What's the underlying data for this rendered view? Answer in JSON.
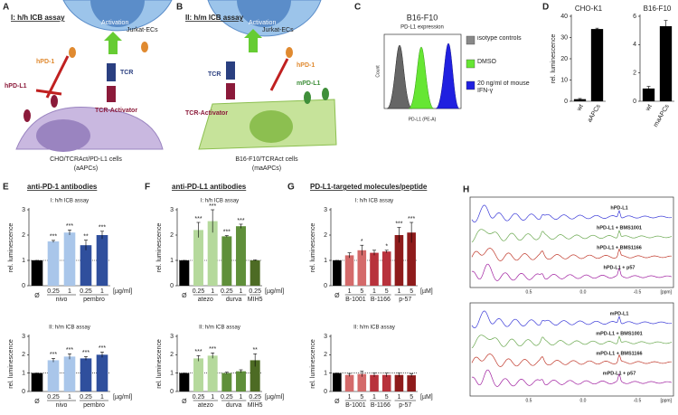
{
  "panel_labels": [
    "A",
    "B",
    "C",
    "D",
    "E",
    "F",
    "G",
    "H"
  ],
  "panel_a": {
    "title": "I: h/h ICB assay",
    "jurkat": "Jurkat-ECs",
    "activation": "Activation",
    "pd1": "hPD-1",
    "pdl1": "hPD-L1",
    "tcr": "TCR",
    "activator": "TCR-Activator",
    "cells": "CHO/TCRAct/PD-L1 cells",
    "cells_abbr": "(aAPCs)"
  },
  "panel_b": {
    "title": "II: h/m ICB assay",
    "jurkat": "Jurkat-ECs",
    "activation": "Activation",
    "pd1": "hPD-1",
    "tcr": "TCR",
    "pdl1": "mPD-L1",
    "activator": "TCR-Activator",
    "cells": "B16-F10/TCRAct cells",
    "cells_abbr": "(maAPCs)"
  },
  "panel_c": {
    "title": "B16-F10",
    "subtitle": "PD-L1 expression",
    "y_label": "Count",
    "x_label": "PD-L1 (PE-A)",
    "legend": [
      "isotype controls",
      "DMSO",
      "20 ng/ml of mouse IFN-γ"
    ],
    "legend_colors": [
      "#888888",
      "#66e633",
      "#2020e0"
    ]
  },
  "panel_titles": {
    "e": "anti-PD-1 antibodies",
    "f": "anti-PD-L1 antibodies",
    "g": "PD-L1-targeted molecules/peptide"
  },
  "chart_data": [
    {
      "type": "bar",
      "title": "CHO-K1",
      "y_label": "rel. luminescence",
      "categories": [
        "wt",
        "aAPCs"
      ],
      "values": [
        1,
        34
      ],
      "errors": [
        0.3,
        0.4
      ],
      "colors": [
        "#000000",
        "#000000"
      ],
      "ylim": [
        0,
        40
      ],
      "yticks": [
        0,
        10,
        20,
        30,
        40
      ]
    },
    {
      "type": "bar",
      "title": "B16-F10",
      "categories": [
        "wt",
        "maAPCs"
      ],
      "values": [
        0.9,
        5.3
      ],
      "errors": [
        0.15,
        0.4
      ],
      "colors": [
        "#000000",
        "#000000"
      ],
      "ylim": [
        0,
        6
      ],
      "yticks": [
        0,
        2,
        4,
        6
      ]
    },
    {
      "type": "bar",
      "title": "I: h/h ICB assay",
      "y_label": "rel. luminescence",
      "categories": [
        "Ø",
        "0.25",
        "1",
        "0.25",
        "1"
      ],
      "groups": [
        null,
        "nivo",
        null,
        "pembro",
        null
      ],
      "unit": "[µg/ml]",
      "values": [
        1,
        1.75,
        2.1,
        1.6,
        2.0
      ],
      "errors": [
        0,
        0.04,
        0.1,
        0.2,
        0.15
      ],
      "significance": [
        null,
        "***",
        "***",
        "**",
        "***"
      ],
      "colors": [
        "#000000",
        "#a9c6ea",
        "#a9c6ea",
        "#2f4f9d",
        "#2f4f9d"
      ],
      "ylim": [
        0,
        3
      ],
      "yticks": [
        0,
        1,
        2,
        3
      ],
      "reference_line": 1
    },
    {
      "type": "bar",
      "title": "II: h/m ICB assay",
      "y_label": "rel. luminescence",
      "categories": [
        "Ø",
        "0.25",
        "1",
        "0.25",
        "1"
      ],
      "groups": [
        null,
        "nivo",
        null,
        "pembro",
        null
      ],
      "unit": "[µg/ml]",
      "values": [
        1,
        1.7,
        1.9,
        1.8,
        2.0
      ],
      "errors": [
        0,
        0.1,
        0.15,
        0.1,
        0.15
      ],
      "significance": [
        null,
        "***",
        "***",
        "***",
        "***"
      ],
      "colors": [
        "#000000",
        "#a9c6ea",
        "#a9c6ea",
        "#2f4f9d",
        "#2f4f9d"
      ],
      "ylim": [
        0,
        3
      ],
      "yticks": [
        0,
        1,
        2,
        3
      ],
      "reference_line": 1
    },
    {
      "type": "bar",
      "title": "I: h/h ICB assay",
      "y_label": "rel. luminescence",
      "categories": [
        "Ø",
        "0.25",
        "1",
        "0.25",
        "1",
        "0.25"
      ],
      "groups": [
        null,
        "atezo",
        null,
        "durva",
        null,
        "MIH5"
      ],
      "unit": "[µg/ml]",
      "values": [
        1,
        2.2,
        2.55,
        1.95,
        2.35,
        1.0
      ],
      "errors": [
        0,
        0.3,
        0.45,
        0.03,
        0.08,
        0.02
      ],
      "significance": [
        null,
        "***",
        "***",
        "***",
        "***",
        null
      ],
      "colors": [
        "#000000",
        "#b5d99c",
        "#b5d99c",
        "#5f8f3a",
        "#5f8f3a",
        "#4d6b24"
      ],
      "ylim": [
        0,
        3
      ],
      "yticks": [
        0,
        1,
        2,
        3
      ],
      "reference_line": 1
    },
    {
      "type": "bar",
      "title": "II: h/m ICB assay",
      "y_label": "rel. luminescence",
      "categories": [
        "Ø",
        "0.25",
        "1",
        "0.25",
        "1",
        "0.25"
      ],
      "groups": [
        null,
        "atezo",
        null,
        "durva",
        null,
        "MIH5"
      ],
      "unit": "[µg/ml]",
      "values": [
        1,
        1.8,
        1.95,
        1.0,
        1.1,
        1.7
      ],
      "errors": [
        0,
        0.15,
        0.15,
        0.05,
        0.08,
        0.35
      ],
      "significance": [
        null,
        "***",
        "***",
        null,
        null,
        "**"
      ],
      "colors": [
        "#000000",
        "#b5d99c",
        "#b5d99c",
        "#5f8f3a",
        "#5f8f3a",
        "#4d6b24"
      ],
      "ylim": [
        0,
        3
      ],
      "yticks": [
        0,
        1,
        2,
        3
      ],
      "reference_line": 1
    },
    {
      "type": "bar",
      "title": "I: h/h ICB assay",
      "y_label": "rel. luminescence",
      "categories": [
        "Ø",
        "1",
        "5",
        "1",
        "5",
        "1",
        "5"
      ],
      "groups": [
        null,
        "B-1001",
        null,
        "B-1166",
        null,
        "p-57",
        null
      ],
      "unit": "[µM]",
      "values": [
        1,
        1.2,
        1.4,
        1.3,
        1.35,
        2.0,
        2.1
      ],
      "errors": [
        0,
        0.1,
        0.2,
        0.1,
        0.05,
        0.3,
        0.4
      ],
      "significance": [
        null,
        null,
        "*",
        null,
        "*",
        "***",
        "***"
      ],
      "colors": [
        "#000000",
        "#d46a6a",
        "#d46a6a",
        "#b8323c",
        "#b8323c",
        "#8e1b1b",
        "#8e1b1b"
      ],
      "ylim": [
        0,
        3
      ],
      "yticks": [
        0,
        1,
        2,
        3
      ],
      "reference_line": 1
    },
    {
      "type": "bar",
      "title": "II: h/m ICB assay",
      "y_label": "rel. luminescence",
      "categories": [
        "Ø",
        "1",
        "5",
        "1",
        "5",
        "1",
        "5"
      ],
      "groups": [
        null,
        "B-1001",
        null,
        "B-1166",
        null,
        "p-57",
        null
      ],
      "unit": "[µM]",
      "values": [
        1,
        0.9,
        0.95,
        0.9,
        0.9,
        0.9,
        0.88
      ],
      "errors": [
        0,
        0.08,
        0.15,
        0.1,
        0.1,
        0.1,
        0.08
      ],
      "colors": [
        "#000000",
        "#d46a6a",
        "#d46a6a",
        "#b8323c",
        "#b8323c",
        "#8e1b1b",
        "#8e1b1b"
      ],
      "ylim": [
        0,
        3
      ],
      "yticks": [
        0,
        1,
        2,
        3
      ],
      "reference_line": 1
    }
  ],
  "panel_h": {
    "spectra_top": [
      "hPD-L1",
      "hPD-L1 + BMS1001",
      "hPD-L1 + BMS1166",
      "hPD-L1 + p57"
    ],
    "spectra_bottom": [
      "mPD-L1",
      "mPD-L1 + BMS1001",
      "mPD-L1 + BMS1166",
      "mPD-L1 + p57"
    ],
    "spectra_colors": [
      "#3a3ad8",
      "#6aa84f",
      "#c0392b",
      "#a020a0"
    ],
    "x_ticks": [
      "0.5",
      "0.0",
      "-0.5"
    ],
    "x_unit": "[ppm]"
  }
}
